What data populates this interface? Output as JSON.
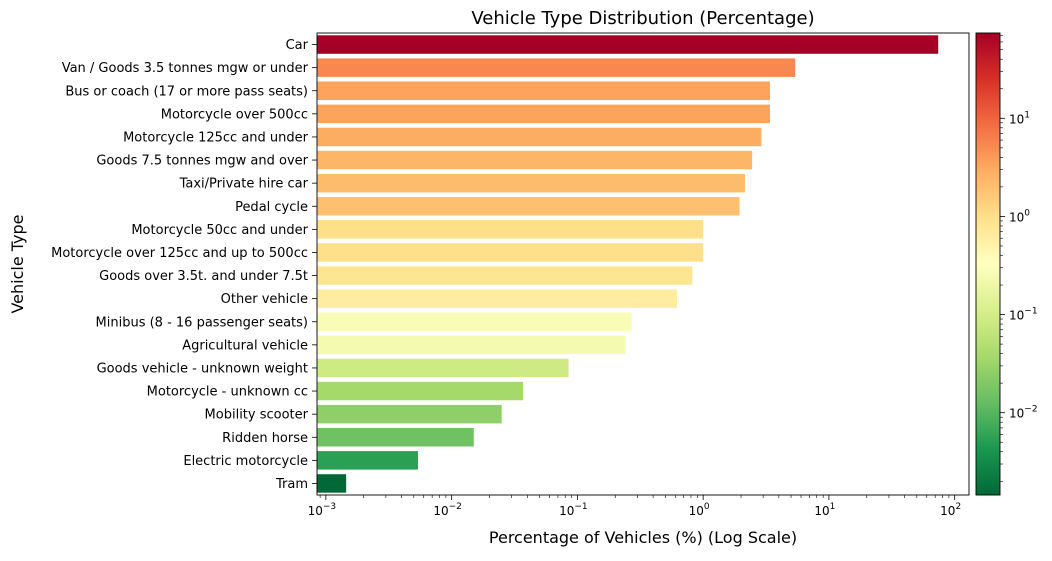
{
  "chart_data": {
    "type": "bar",
    "orientation": "horizontal",
    "title": "Vehicle Type Distribution (Percentage)",
    "xlabel": "Percentage of Vehicles (%) (Log Scale)",
    "ylabel": "Vehicle Type",
    "x_scale": "log",
    "xlim": [
      0.00085,
      130
    ],
    "x_ticks": [
      {
        "value": 0.001,
        "base": "10",
        "exp": "−3"
      },
      {
        "value": 0.01,
        "base": "10",
        "exp": "−2"
      },
      {
        "value": 0.1,
        "base": "10",
        "exp": "−1"
      },
      {
        "value": 1,
        "base": "10",
        "exp": "0"
      },
      {
        "value": 10,
        "base": "10",
        "exp": "1"
      },
      {
        "value": 100,
        "base": "10",
        "exp": "2"
      }
    ],
    "categories": [
      "Car",
      "Van / Goods 3.5 tonnes mgw or under",
      "Bus or coach (17 or more pass seats)",
      "Motorcycle over 500cc",
      "Motorcycle 125cc and under",
      "Goods 7.5 tonnes mgw and over",
      "Taxi/Private hire car",
      "Pedal cycle",
      "Motorcycle 50cc and under",
      "Motorcycle over 125cc and up to 500cc",
      "Goods over 3.5t. and under 7.5t",
      "Other vehicle",
      "Minibus (8 - 16 passenger seats)",
      "Agricultural vehicle",
      "Goods vehicle - unknown weight",
      "Motorcycle - unknown cc",
      "Mobility scooter",
      "Ridden horse",
      "Electric motorcycle",
      "Tram"
    ],
    "values": [
      74,
      5.4,
      3.4,
      3.4,
      2.9,
      2.45,
      2.15,
      1.95,
      1.0,
      1.0,
      0.82,
      0.62,
      0.27,
      0.24,
      0.085,
      0.037,
      0.025,
      0.015,
      0.0054,
      0.00145
    ],
    "colormap": "RdYlGn_r",
    "colorbar": {
      "scale": "log",
      "range": [
        0.00145,
        74
      ],
      "ticks": [
        {
          "value": 0.01,
          "base": "10",
          "exp": "−2"
        },
        {
          "value": 0.1,
          "base": "10",
          "exp": "−1"
        },
        {
          "value": 1,
          "base": "10",
          "exp": "0"
        },
        {
          "value": 10,
          "base": "10",
          "exp": "1"
        }
      ]
    },
    "grid": false,
    "legend": "none"
  }
}
